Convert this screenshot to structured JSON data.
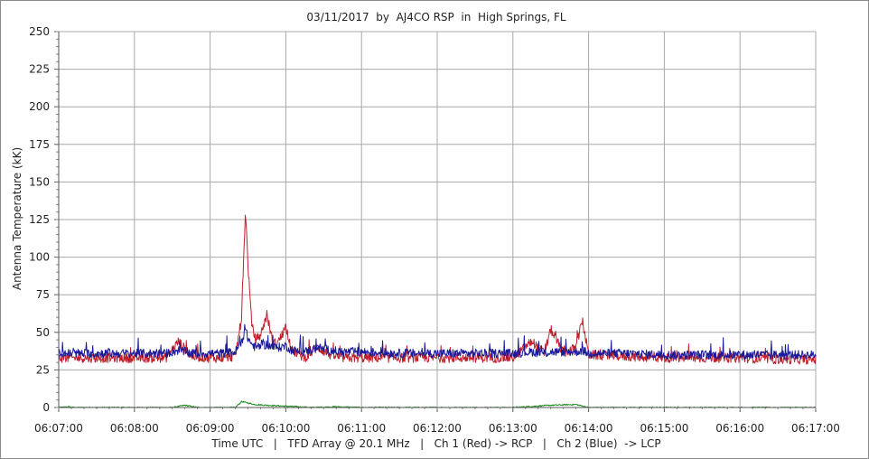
{
  "chart_data": {
    "type": "line",
    "title": "03/11/2017  by  AJ4CO RSP  in  High Springs, FL",
    "xlabel": "Time UTC   |   TFD Array @ 20.1 MHz   |   Ch 1 (Red) -> RCP   |   Ch 2 (Blue)  -> LCP",
    "ylabel": "Antenna Temperature (kK)",
    "x_ticks": [
      "06:07:00",
      "06:08:00",
      "06:09:00",
      "06:10:00",
      "06:11:00",
      "06:12:00",
      "06:13:00",
      "06:14:00",
      "06:15:00",
      "06:16:00",
      "06:17:00"
    ],
    "y_ticks": [
      0,
      25,
      50,
      75,
      100,
      125,
      150,
      175,
      200,
      225,
      250
    ],
    "xlim": [
      "06:07:00",
      "06:17:00"
    ],
    "ylim": [
      0,
      250
    ],
    "grid": true,
    "colors": {
      "ch1": "#c0202e",
      "ch2": "#1a1a9a",
      "diff": "#1a8a1a",
      "grid": "#a8a8a8"
    },
    "series": [
      {
        "key": "ch1",
        "x": [
          "06:07:00",
          "06:07:30",
          "06:08:00",
          "06:08:25",
          "06:08:35",
          "06:08:45",
          "06:09:00",
          "06:09:10",
          "06:09:20",
          "06:09:25",
          "06:09:28",
          "06:09:30",
          "06:09:33",
          "06:09:36",
          "06:09:40",
          "06:09:45",
          "06:09:50",
          "06:09:55",
          "06:10:00",
          "06:10:05",
          "06:10:15",
          "06:10:25",
          "06:10:35",
          "06:10:45",
          "06:11:00",
          "06:11:30",
          "06:12:00",
          "06:12:30",
          "06:13:00",
          "06:13:15",
          "06:13:25",
          "06:13:30",
          "06:13:40",
          "06:13:50",
          "06:13:55",
          "06:14:00",
          "06:14:30",
          "06:15:00",
          "06:15:30",
          "06:16:00",
          "06:16:30",
          "06:17:00"
        ],
        "values": [
          33,
          33,
          33,
          33,
          44,
          34,
          33,
          33,
          34,
          60,
          132,
          95,
          55,
          45,
          48,
          62,
          42,
          45,
          54,
          38,
          33,
          40,
          35,
          33,
          33,
          33,
          33,
          33,
          33,
          44,
          36,
          52,
          36,
          40,
          58,
          35,
          34,
          33,
          33,
          33,
          32,
          32
        ]
      },
      {
        "key": "ch2",
        "x": [
          "06:07:00",
          "06:07:30",
          "06:08:00",
          "06:08:25",
          "06:08:35",
          "06:08:45",
          "06:09:00",
          "06:09:10",
          "06:09:20",
          "06:09:25",
          "06:09:28",
          "06:09:30",
          "06:09:33",
          "06:09:36",
          "06:09:40",
          "06:09:45",
          "06:09:50",
          "06:09:55",
          "06:10:00",
          "06:10:05",
          "06:10:15",
          "06:10:25",
          "06:10:35",
          "06:10:45",
          "06:11:00",
          "06:11:30",
          "06:12:00",
          "06:12:30",
          "06:13:00",
          "06:13:15",
          "06:13:25",
          "06:13:30",
          "06:13:40",
          "06:13:50",
          "06:13:55",
          "06:14:00",
          "06:14:30",
          "06:15:00",
          "06:15:30",
          "06:16:00",
          "06:16:30",
          "06:17:00"
        ],
        "values": [
          36,
          36,
          36,
          36,
          38,
          36,
          36,
          36,
          37,
          44,
          52,
          46,
          42,
          40,
          41,
          42,
          40,
          40,
          41,
          38,
          37,
          40,
          38,
          37,
          37,
          36,
          36,
          36,
          36,
          37,
          36,
          37,
          37,
          37,
          38,
          36,
          36,
          35,
          35,
          35,
          35,
          35
        ]
      },
      {
        "key": "diff",
        "x": [
          "06:07:00",
          "06:07:08",
          "06:07:12",
          "06:08:00",
          "06:08:30",
          "06:08:40",
          "06:08:50",
          "06:09:20",
          "06:09:25",
          "06:09:35",
          "06:09:45",
          "06:10:10",
          "06:10:20",
          "06:10:40",
          "06:11:00",
          "06:12:00",
          "06:13:00",
          "06:13:10",
          "06:13:30",
          "06:13:50",
          "06:14:00",
          "06:15:00",
          "06:17:00"
        ],
        "values": [
          0,
          0.5,
          0,
          0,
          0,
          1.5,
          0,
          0,
          4,
          2,
          1.5,
          0.5,
          0,
          0.5,
          0,
          0,
          0,
          0.5,
          1.5,
          2,
          0,
          0,
          0
        ]
      }
    ]
  }
}
